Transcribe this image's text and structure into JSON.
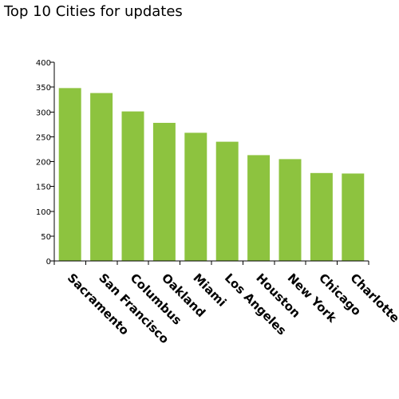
{
  "chart_data": {
    "type": "bar",
    "title": "Top 10 Cities for updates",
    "xlabel": "",
    "ylabel": "",
    "categories": [
      "Sacramento",
      "San Francisco",
      "Columbus",
      "Oakland",
      "Miami",
      "Los Angeles",
      "Houston",
      "New York",
      "Chicago",
      "Charlotte"
    ],
    "values": [
      348,
      338,
      301,
      278,
      258,
      240,
      213,
      205,
      177,
      176
    ],
    "ylim": [
      0,
      400
    ],
    "yticks": [
      "0",
      "50",
      "100",
      "150",
      "200",
      "250",
      "300",
      "350",
      "400"
    ],
    "bar_color": "#8dc33f",
    "grid": false,
    "legend": "none"
  }
}
